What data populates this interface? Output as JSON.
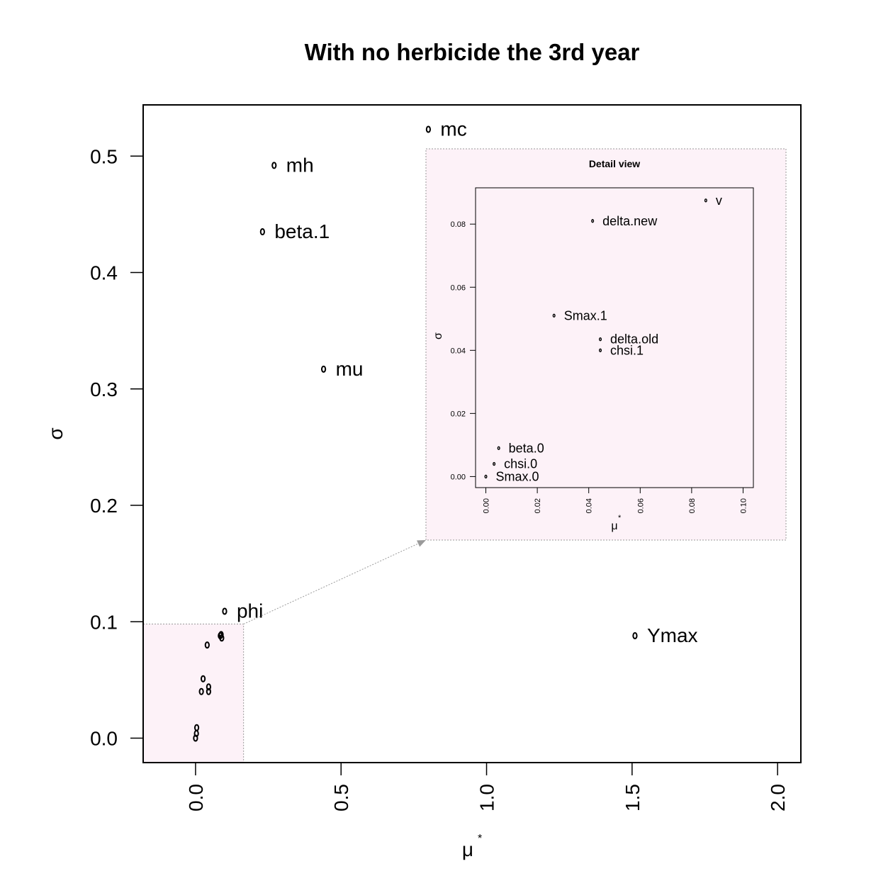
{
  "chart_data": [
    {
      "type": "scatter",
      "title": "With no herbicide the 3rd year",
      "xlabel": "μ",
      "xlabel_superscript": "*",
      "ylabel": "σ",
      "xlim": [
        -0.18,
        2.08
      ],
      "ylim": [
        -0.021,
        0.544
      ],
      "xticks": [
        "0.0",
        "0.5",
        "1.0",
        "1.5",
        "2.0"
      ],
      "yticks": [
        "0.0",
        "0.1",
        "0.2",
        "0.3",
        "0.4",
        "0.5"
      ],
      "grid": false,
      "labeled_points": [
        {
          "label": "mc",
          "x": 0.8,
          "y": 0.523
        },
        {
          "label": "mh",
          "x": 0.27,
          "y": 0.492
        },
        {
          "label": "beta.1",
          "x": 0.23,
          "y": 0.435
        },
        {
          "label": "mu",
          "x": 0.44,
          "y": 0.317
        },
        {
          "label": "phi",
          "x": 0.1,
          "y": 0.109
        },
        {
          "label": "Ymax",
          "x": 1.51,
          "y": 0.088
        }
      ],
      "unlabeled_points": [
        {
          "x": 0.085,
          "y": 0.088
        },
        {
          "x": 0.09,
          "y": 0.086
        },
        {
          "x": 0.088,
          "y": 0.089
        },
        {
          "x": 0.04,
          "y": 0.08
        },
        {
          "x": 0.026,
          "y": 0.051
        },
        {
          "x": 0.045,
          "y": 0.044
        },
        {
          "x": 0.045,
          "y": 0.04
        },
        {
          "x": 0.02,
          "y": 0.04
        },
        {
          "x": 0.004,
          "y": 0.009
        },
        {
          "x": 0.003,
          "y": 0.004
        },
        {
          "x": 0.0,
          "y": 0.0
        }
      ],
      "zoom_region": {
        "x": [
          -0.18,
          0.165
        ],
        "y": [
          -0.021,
          0.098
        ]
      }
    },
    {
      "type": "scatter",
      "title": "Detail view",
      "xlabel": "μ",
      "xlabel_superscript": "*",
      "ylabel": "σ",
      "xlim": [
        -0.004,
        0.104
      ],
      "ylim": [
        -0.0035,
        0.0915
      ],
      "xticks": [
        "0.00",
        "0.02",
        "0.04",
        "0.06",
        "0.08",
        "0.10"
      ],
      "yticks": [
        "0.00",
        "0.02",
        "0.04",
        "0.06",
        "0.08"
      ],
      "grid": false,
      "labeled_points": [
        {
          "label": "v",
          "x": 0.0855,
          "y": 0.0875
        },
        {
          "label": "delta.new",
          "x": 0.0415,
          "y": 0.081
        },
        {
          "label": "Smax.1",
          "x": 0.0265,
          "y": 0.051
        },
        {
          "label": "delta.old",
          "x": 0.0445,
          "y": 0.0435
        },
        {
          "label": "chsi.1",
          "x": 0.0445,
          "y": 0.04
        },
        {
          "label": "beta.0",
          "x": 0.005,
          "y": 0.009
        },
        {
          "label": "chsi.0",
          "x": 0.0032,
          "y": 0.004
        },
        {
          "label": "Smax.0",
          "x": 0.0,
          "y": 0.0
        }
      ]
    }
  ],
  "colors": {
    "zoom_fill": "#fdf2f8",
    "zoom_border": "#9a9a9a",
    "axis": "#000000"
  }
}
